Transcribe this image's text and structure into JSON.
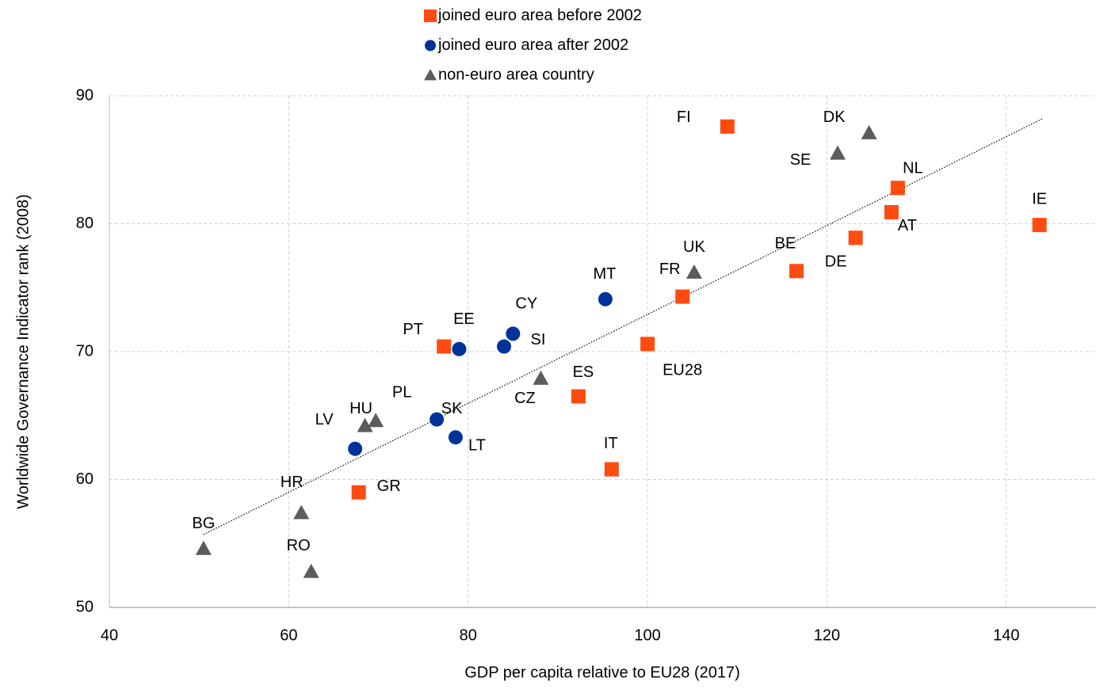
{
  "chart_data": {
    "type": "scatter",
    "x_label": "GDP per capita relative to EU28 (2017)",
    "y_label": "Worldwide Governance Indicator rank (2008)",
    "xlim": [
      40,
      150
    ],
    "xticks": [
      40,
      60,
      80,
      100,
      120,
      140
    ],
    "ylim": [
      50,
      90
    ],
    "yticks": [
      50,
      60,
      70,
      80,
      90
    ],
    "grid": true,
    "legend": "top",
    "series": [
      {
        "name": "joined euro area before 2002",
        "color": "#ff4b10",
        "marker": "square",
        "labels": [
          "FI",
          "IE",
          "NL",
          "AT",
          "DE",
          "BE",
          "FR",
          "EU28",
          "ES",
          "IT",
          "PT",
          "GR"
        ],
        "x": [
          108.9,
          143.7,
          127.9,
          127.2,
          123.2,
          116.6,
          103.9,
          100,
          92.3,
          96.0,
          77.3,
          67.8
        ],
        "values": [
          87.6,
          79.9,
          82.8,
          80.9,
          78.9,
          76.3,
          74.3,
          70.6,
          66.5,
          60.8,
          70.4,
          59.0
        ]
      },
      {
        "name": "joined euro area after 2002",
        "color": "#003299",
        "marker": "circle",
        "labels": [
          "MT",
          "CY",
          "SI",
          "EE",
          "SK",
          "LT",
          "LV"
        ],
        "x": [
          95.3,
          85.0,
          84.0,
          79.0,
          76.5,
          78.6,
          67.4
        ],
        "values": [
          74.1,
          71.4,
          70.4,
          70.2,
          64.7,
          63.3,
          62.4
        ]
      },
      {
        "name": "non-euro area country",
        "color": "#5c5c5c",
        "marker": "triangle",
        "labels": [
          "DK",
          "SE",
          "UK",
          "CZ",
          "PL",
          "HU",
          "HR",
          "RO",
          "BG"
        ],
        "x": [
          124.7,
          121.2,
          105.2,
          88.1,
          69.7,
          68.5,
          61.4,
          62.5,
          50.5
        ],
        "values": [
          87.1,
          85.5,
          76.2,
          67.9,
          64.6,
          64.2,
          57.4,
          52.8,
          54.6
        ]
      }
    ],
    "trendline": {
      "x": [
        50.5,
        144.0
      ],
      "y": [
        55.7,
        88.2
      ]
    }
  }
}
